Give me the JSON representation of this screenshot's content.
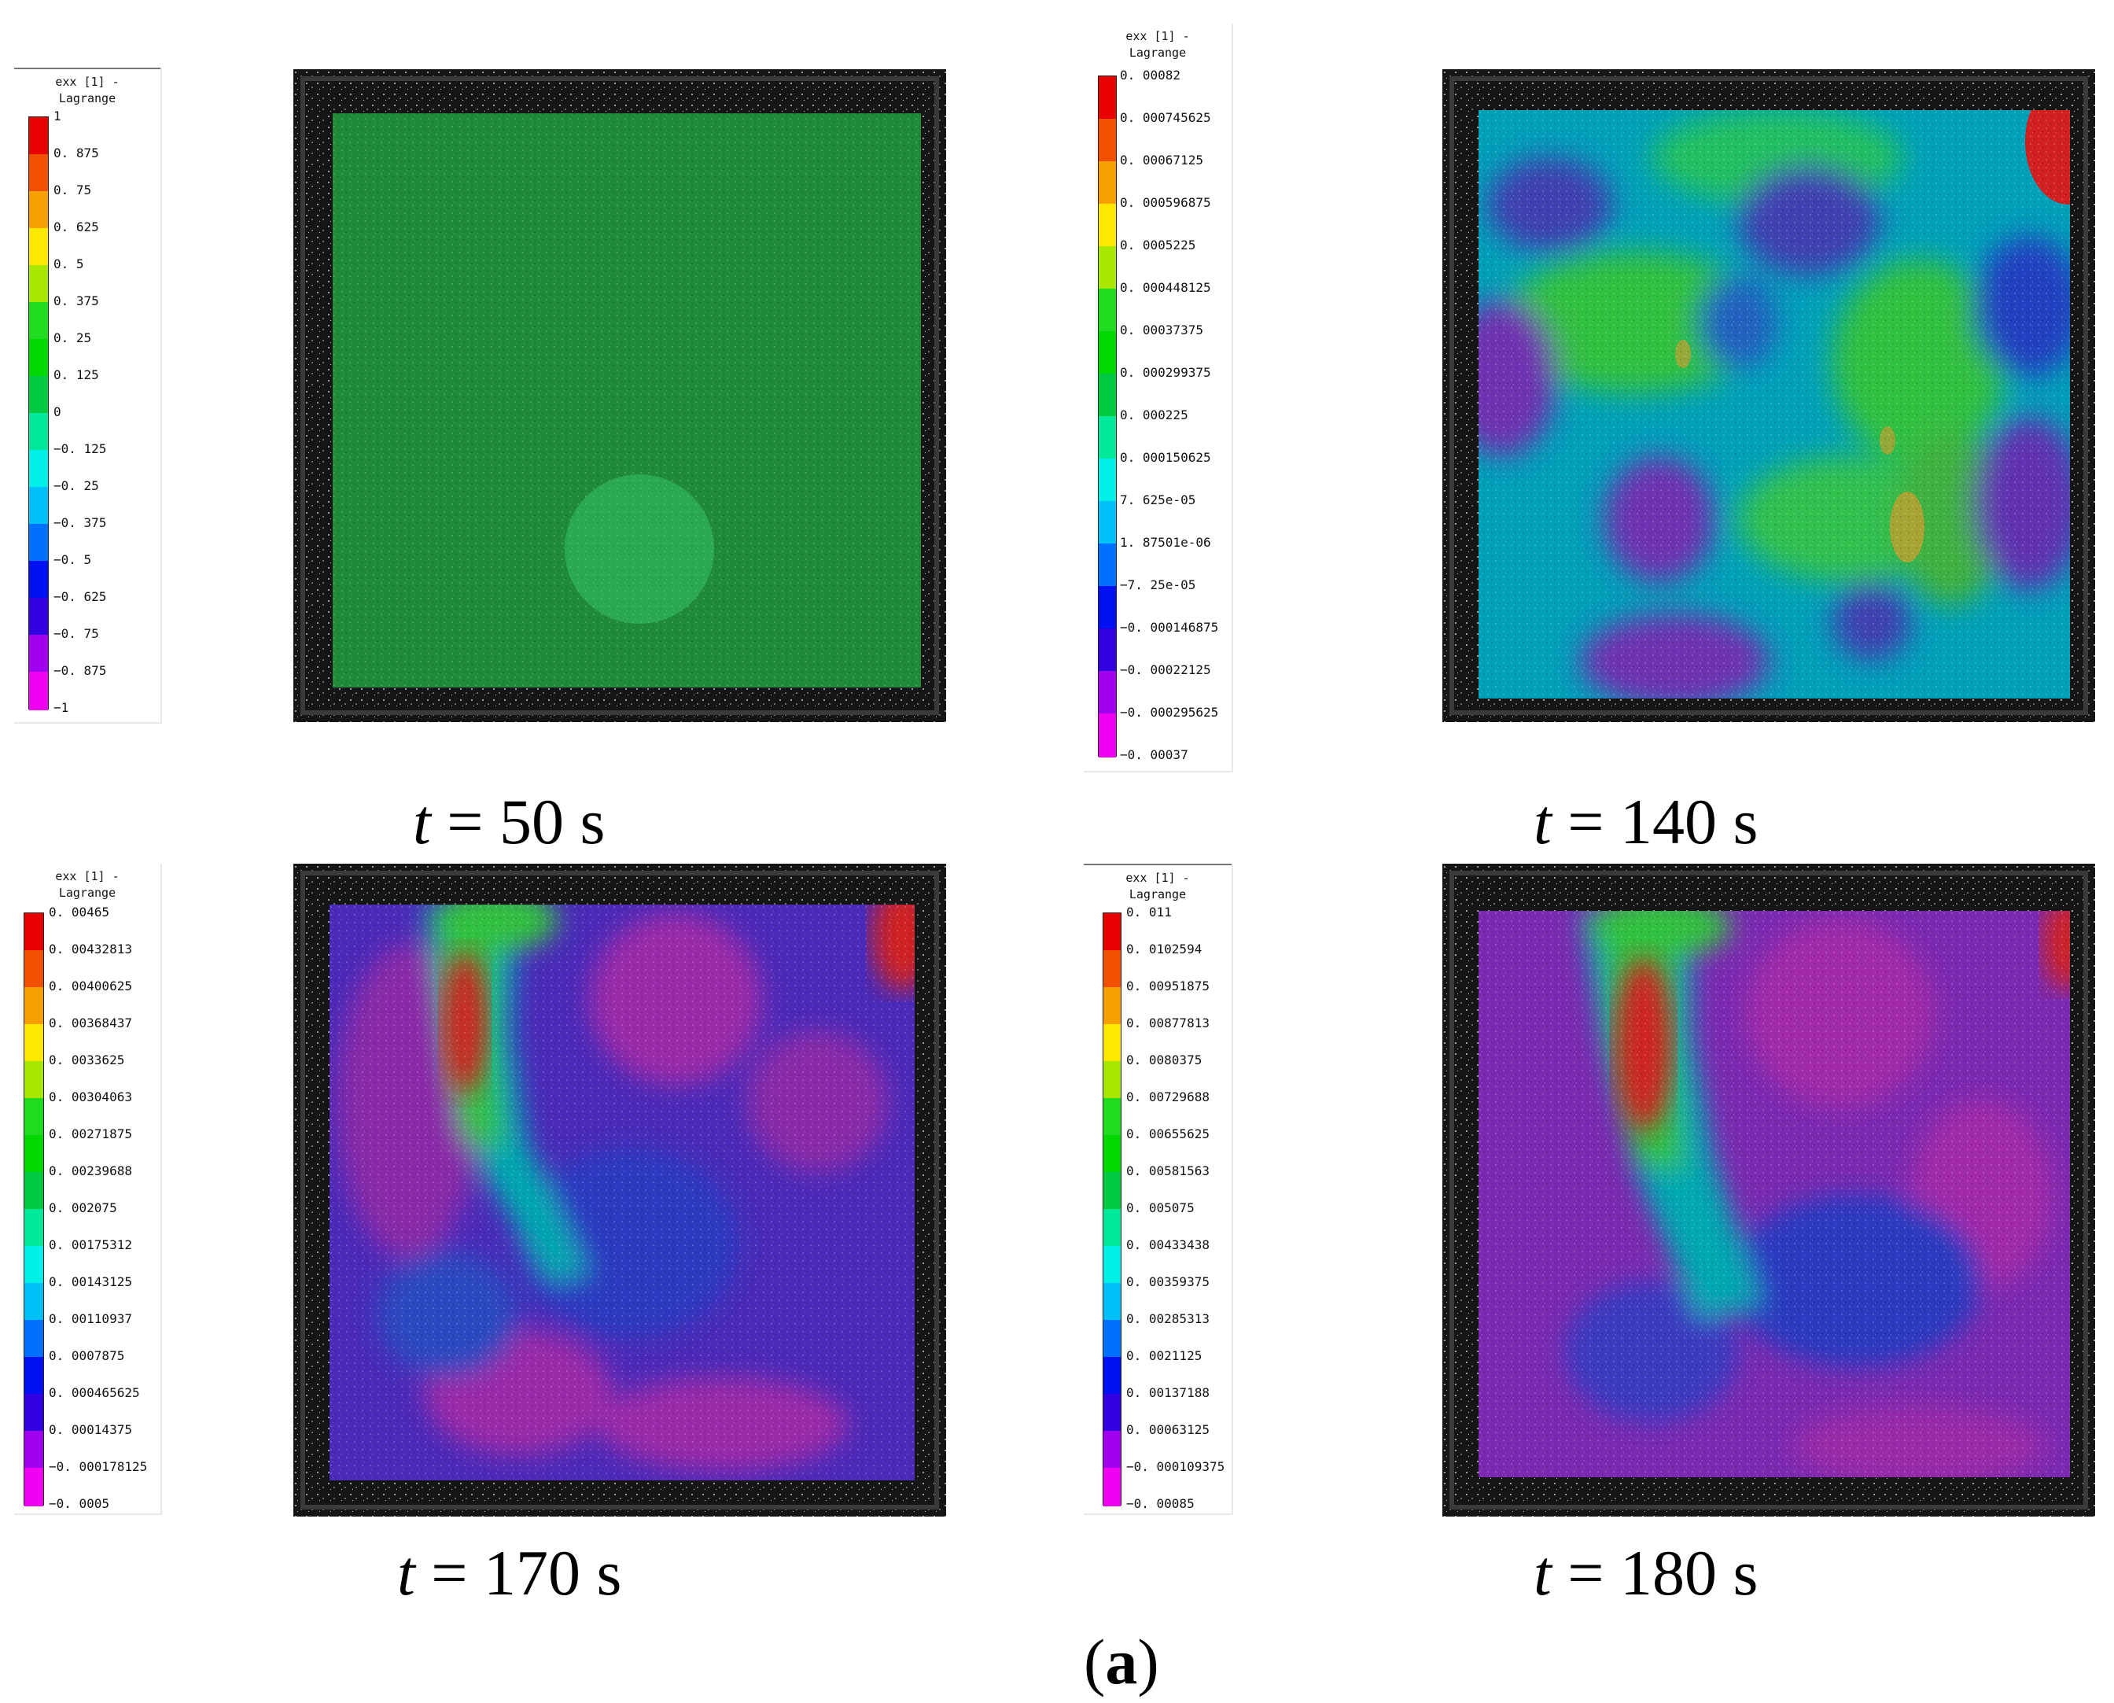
{
  "figure_label": {
    "open": "(",
    "letter": "a",
    "close": ")"
  },
  "colors": [
    "#e80000",
    "#f05000",
    "#f8a000",
    "#ffe800",
    "#a8e800",
    "#20dc20",
    "#00d800",
    "#00c840",
    "#00e89c",
    "#00f0e8",
    "#00c0f8",
    "#0070ff",
    "#0010f0",
    "#3000e0",
    "#a000f0",
    "#f000f0"
  ],
  "panels": [
    {
      "id": "t50",
      "time_var": "t",
      "time_text": " = 50 s",
      "legend": {
        "title": "exx [1] -\nLagrange",
        "ticks": [
          "1",
          "0. 875",
          "0. 75",
          "0. 625",
          "0. 5",
          "0. 375",
          "0. 25",
          "0. 125",
          "0",
          "−0. 125",
          "−0. 25",
          "−0. 375",
          "−0. 5",
          "−0. 625",
          "−0. 75",
          "−0. 875",
          "−1"
        ]
      }
    },
    {
      "id": "t140",
      "time_var": "t",
      "time_text": " = 140 s",
      "legend": {
        "title": "exx [1] -\nLagrange",
        "ticks": [
          "0. 00082",
          "0. 000745625",
          "0. 00067125",
          "0. 000596875",
          "0. 0005225",
          "0. 000448125",
          "0. 00037375",
          "0. 000299375",
          "0. 000225",
          "0. 000150625",
          "7. 625e-05",
          "1. 87501e-06",
          "−7. 25e-05",
          "−0. 000146875",
          "−0. 00022125",
          "−0. 000295625",
          "−0. 00037"
        ]
      }
    },
    {
      "id": "t170",
      "time_var": "t",
      "time_text": " = 170 s",
      "legend": {
        "title": "exx [1] -\nLagrange",
        "ticks": [
          "0. 00465",
          "0. 00432813",
          "0. 00400625",
          "0. 00368437",
          "0. 0033625",
          "0. 00304063",
          "0. 00271875",
          "0. 00239688",
          "0. 002075",
          "0. 00175312",
          "0. 00143125",
          "0. 00110937",
          "0. 0007875",
          "0. 000465625",
          "0. 00014375",
          "−0. 000178125",
          "−0. 0005"
        ]
      }
    },
    {
      "id": "t180",
      "time_var": "t",
      "time_text": " = 180 s",
      "legend": {
        "title": "exx [1] -\nLagrange",
        "ticks": [
          "0. 011",
          "0. 0102594",
          "0. 00951875",
          "0. 00877813",
          "0. 0080375",
          "0. 00729688",
          "0. 00655625",
          "0. 00581563",
          "0. 005075",
          "0. 00433438",
          "0. 00359375",
          "0. 00285313",
          "0. 0021125",
          "0. 00137188",
          "0. 00063125",
          "−0. 000109375",
          "−0. 00085"
        ]
      }
    }
  ]
}
